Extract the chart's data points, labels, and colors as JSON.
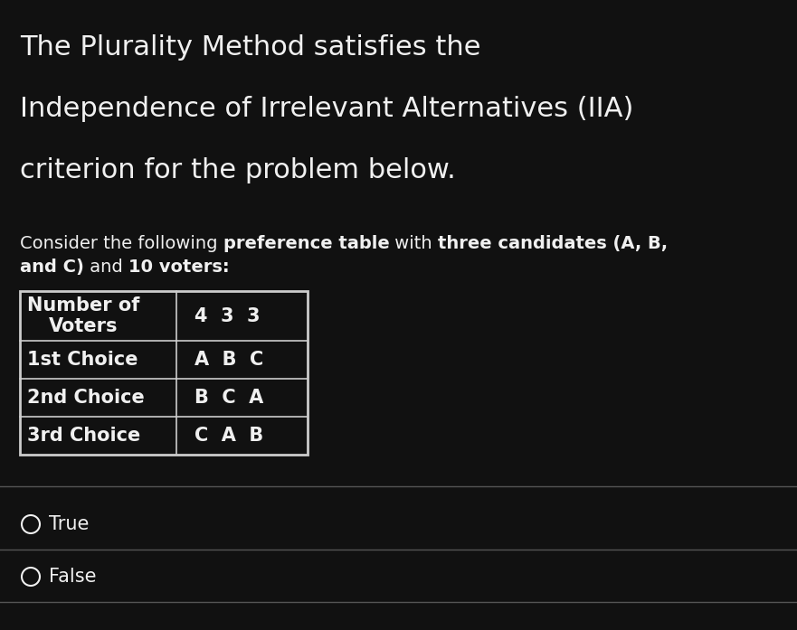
{
  "title_line1": "The Plurality Method satisfies the",
  "title_line2": "Independence of Irrelevant Alternatives (IIA)",
  "title_line3": "criterion for the problem below.",
  "sub_line1_normal1": "Consider the following ",
  "sub_line1_bold1": "preference table",
  "sub_line1_normal2": " with ",
  "sub_line1_bold2": "three candidates (A, B,",
  "sub_line2_bold1": "and C)",
  "sub_line2_normal1": " and ",
  "sub_line2_bold2": "10 voters:",
  "table_header_label": "Number of\nVoters",
  "table_header_values": "4  3  3",
  "table_rows": [
    {
      "label": "1st Choice",
      "values": "A  B  C"
    },
    {
      "label": "2nd Choice",
      "values": "B  C  A"
    },
    {
      "label": "3rd Choice",
      "values": "C  A  B"
    }
  ],
  "options": [
    "True",
    "False"
  ],
  "bg_color": "#111111",
  "text_color": "#f0f0f0",
  "table_border_color": "#cccccc",
  "sep_line_color": "#555555",
  "title_fontsize": 22,
  "subtitle_fontsize": 14,
  "table_fontsize": 15,
  "option_fontsize": 15
}
